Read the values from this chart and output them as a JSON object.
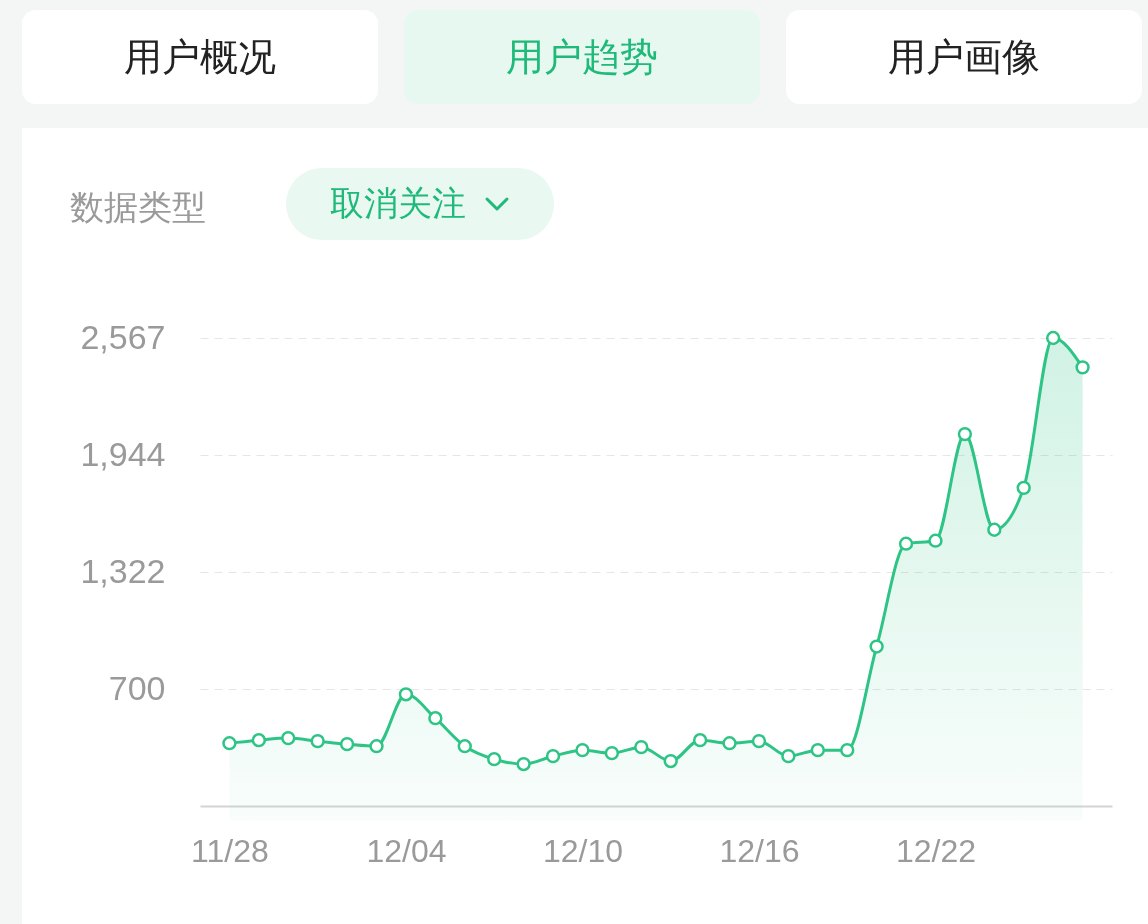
{
  "chart_data": {
    "type": "area",
    "annotations": [
      "用户概况",
      "用户趋势",
      "用户画像",
      "数据类型",
      "取消关注"
    ],
    "categories": [
      "11/28",
      null,
      null,
      null,
      null,
      null,
      "12/04",
      null,
      null,
      null,
      null,
      null,
      "12/10",
      null,
      null,
      null,
      null,
      null,
      "12/16",
      null,
      null,
      null,
      null,
      null,
      "12/22",
      null,
      null,
      null,
      null,
      null
    ],
    "series": [
      {
        "color": "#2ec486",
        "values": [
          412,
          428,
          439,
          423,
          407,
          396,
          672,
          545,
          396,
          327,
          301,
          343,
          375,
          359,
          391,
          317,
          428,
          412,
          423,
          343,
          375,
          375,
          926,
          1473,
          1489,
          2056,
          1547,
          1770,
          2567,
          2411
        ]
      }
    ],
    "ylim": [
      78,
      2567
    ],
    "yticks": [
      700,
      {
        "value": 1322,
        "label": "1,322"
      },
      {
        "value": 1944,
        "label": "1,944"
      },
      {
        "value": 2567,
        "label": "2,567"
      }
    ],
    "grid": "y",
    "marker": "circle"
  }
}
